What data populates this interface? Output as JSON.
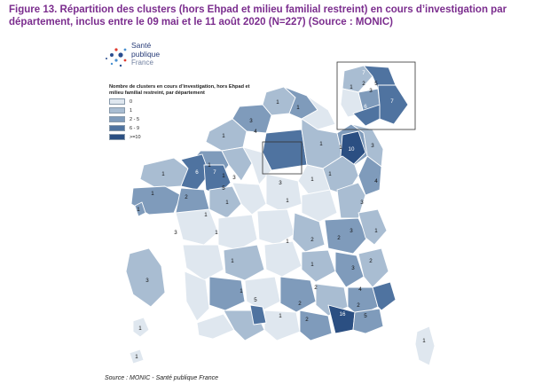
{
  "title": "Figure 13. Répartition des clusters (hors Ehpad et milieu familial restreint) en cours d’investigation par département, inclus entre le 09 mai et le 11 août 2020 (N=227) (Source : MONIC)",
  "logo": {
    "line1": "Santé",
    "line2": "publique",
    "line3": "France"
  },
  "legend": {
    "title": "Nombre de clusters en cours d’investigation, hors Ehpad et milieu familial restreint, par département",
    "items": [
      {
        "label": "0",
        "color": "#dfe7ef"
      },
      {
        "label": "1",
        "color": "#a9bdd2"
      },
      {
        "label": "2 - 5",
        "color": "#7f9bbb"
      },
      {
        "label": "6 - 9",
        "color": "#4f73a0"
      },
      {
        "label": ">=10",
        "color": "#2b4f82"
      }
    ]
  },
  "source": "Source : MONIC - Santé publique France",
  "colors": {
    "title": "#7b2d8e",
    "border": "#ffffff",
    "box": "#333333"
  },
  "map_labels": {
    "a1": "1",
    "a2": "1",
    "a3": "3",
    "a4": "1",
    "a5": "4",
    "a6": "1",
    "a7": "1",
    "a8": "10",
    "a9": "3",
    "b1": "1",
    "b2": "1",
    "b3": "6",
    "b4": "7",
    "b5": "3",
    "b6": "5",
    "b7": "3",
    "b8": "1",
    "b9": "1",
    "c1": "1",
    "c2": "1",
    "c3": "2",
    "c4": "4",
    "c5": "3",
    "c6": "1",
    "c7": "1",
    "c8": "3",
    "d1": "1",
    "d2": "2",
    "d3": "2",
    "d4": "3",
    "d5": "2",
    "d6": "1",
    "d7": "1",
    "d8": "1",
    "d9": "1",
    "e1": "5",
    "e2": "1",
    "e3": "2",
    "e4": "2",
    "e5": "4",
    "e6": "2",
    "e7": "1",
    "e8": "16",
    "e9": "5",
    "f1": "3",
    "f2": "1",
    "f3": "1",
    "f4": "1",
    "f5": "1",
    "g1": "3",
    "g2": "2",
    "g3": "1",
    "i1": "7",
    "i2": "1",
    "i3": "2",
    "i4": "3",
    "i5": "5",
    "i6": "6",
    "i7": "7"
  }
}
